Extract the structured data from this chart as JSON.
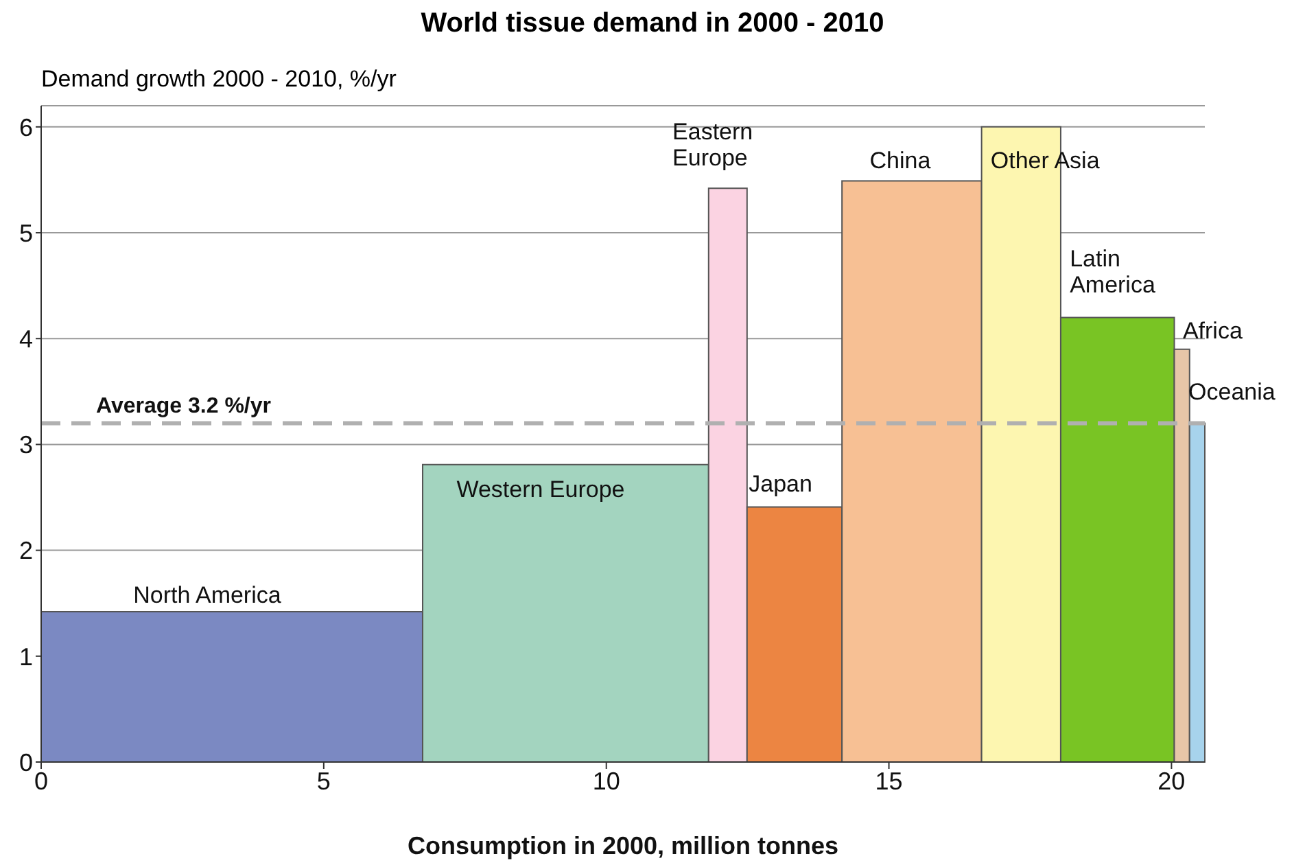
{
  "chart_data": {
    "type": "histogram",
    "title": "World tissue demand in 2000 - 2010",
    "xlabel": "Consumption in 2000, million tonnes",
    "ylabel": "Demand growth 2000 - 2010, %/yr",
    "bins": [
      0,
      6.75,
      11.81,
      12.49,
      14.17,
      16.64,
      18.04,
      20.05,
      20.32,
      20.59
    ],
    "values": [
      1.42,
      2.81,
      5.42,
      2.41,
      5.49,
      6.0,
      4.2,
      3.9,
      3.2
    ],
    "colors": [
      "#7b89c2",
      "#a3d4bf",
      "#fbd3e2",
      "#ec8542",
      "#f7c094",
      "#fdf6b0",
      "#79c424",
      "#e7c6a8",
      "#a7d3ec"
    ],
    "xlim": [
      0,
      20.59
    ],
    "xticks": [
      0,
      5,
      10,
      15,
      20
    ],
    "ylim": [
      0,
      6.2
    ],
    "yticks": [
      0,
      1,
      2,
      3,
      4,
      5,
      6
    ],
    "grid": "y",
    "ref_lines": [
      {
        "axis": "y",
        "value": 3.2,
        "label": "Average 3.2 %/yr",
        "color": "#b0b0b0",
        "line_style": "dashed"
      }
    ],
    "categories": [
      "North America",
      "Western Europe",
      "Eastern Europe",
      "Japan",
      "China",
      "Other Asia",
      "Latin America",
      "Africa",
      "Oceania"
    ]
  }
}
